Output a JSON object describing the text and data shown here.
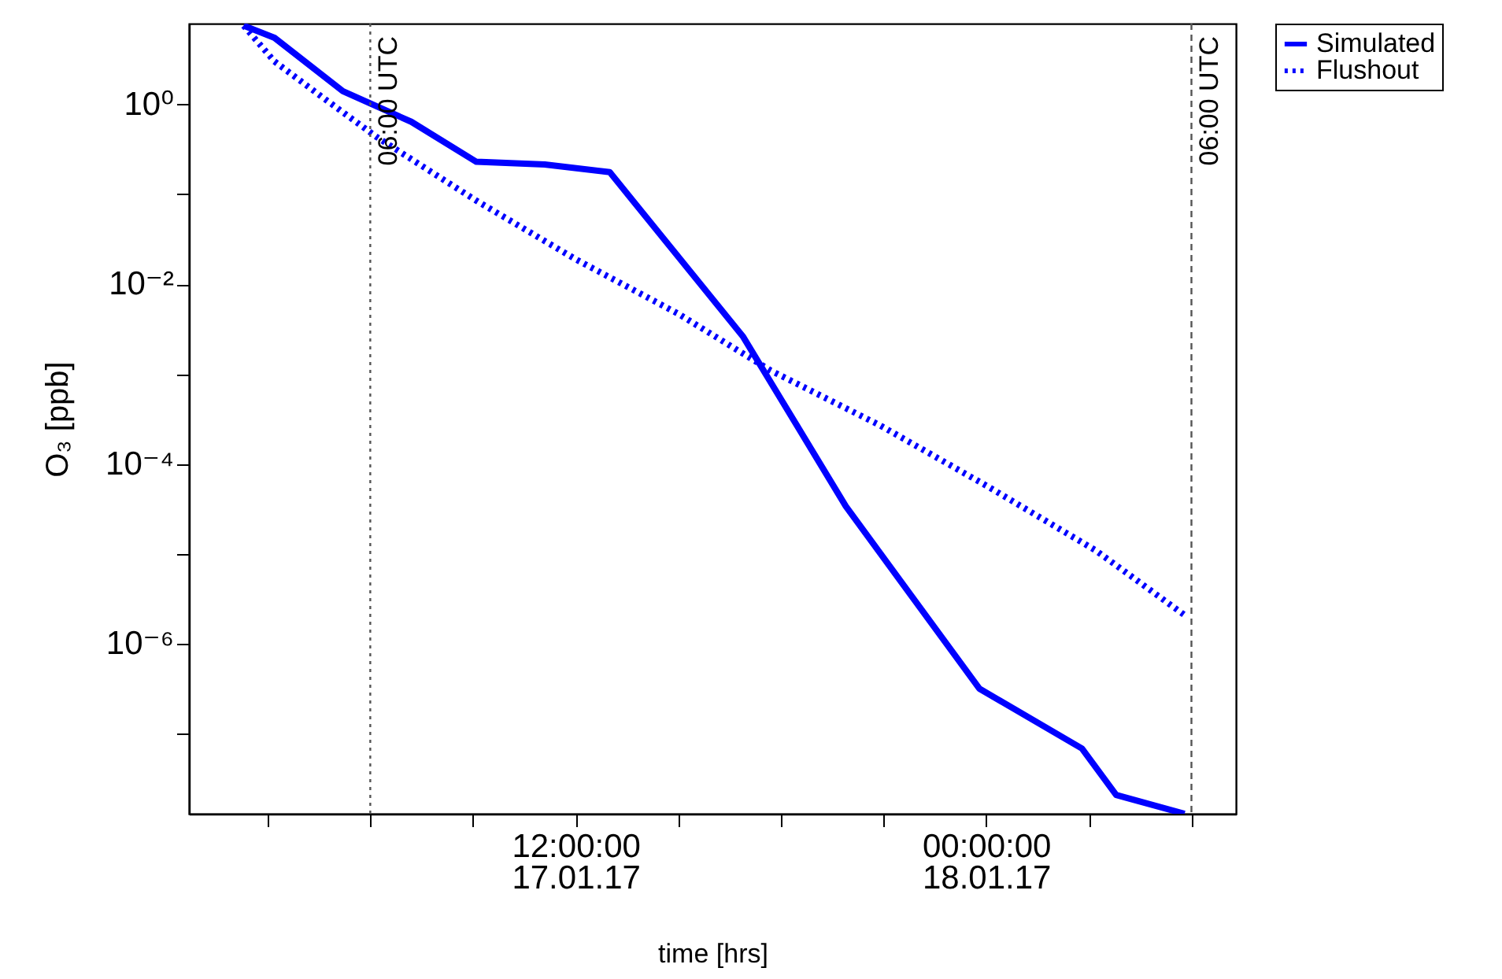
{
  "chart_data": {
    "type": "line",
    "xlabel": "time [hrs]",
    "ylabel": "O₃ [ppb]",
    "xlim": [
      "--01-17T00:42",
      "--01-18T07:18"
    ],
    "xticks": [
      {
        "value": "--01-17T03:00",
        "label": null
      },
      {
        "value": "--01-17T06:00",
        "label": null
      },
      {
        "value": "--01-17T09:00",
        "label": null
      },
      {
        "value": "--01-17T12:00",
        "label": "12:00:00\n17.01.17"
      },
      {
        "value": "--01-17T15:00",
        "label": null
      },
      {
        "value": "--01-17T18:00",
        "label": null
      },
      {
        "value": "--01-17T21:00",
        "label": null
      },
      {
        "value": "--01-18T00:00",
        "label": "00:00:00\n18.01.17"
      },
      {
        "value": "--01-18T03:00",
        "label": null
      },
      {
        "value": "--01-18T06:00",
        "label": null
      }
    ],
    "ylim": [
      1.3e-08,
      7.9
    ],
    "log": "y",
    "yticks": [
      {
        "value": 1,
        "label": "10⁰"
      },
      {
        "value": 0.1,
        "label": null
      },
      {
        "value": 0.01,
        "label": "10⁻²"
      },
      {
        "value": 0.001,
        "label": null
      },
      {
        "value": 0.0001,
        "label": "10⁻⁴"
      },
      {
        "value": 1e-05,
        "label": null
      },
      {
        "value": 1e-06,
        "label": "10⁻⁶"
      },
      {
        "value": 1e-07,
        "label": null
      }
    ],
    "grid": false,
    "legend": "top right",
    "series": [
      {
        "name": "Simulated",
        "color": "#0000ff",
        "line_style": "solid",
        "x": [
          "--01-17T02:18",
          "--01-17T03:12",
          "--01-17T05:12",
          "--01-17T07:12",
          "--01-17T09:06",
          "--01-17T11:06",
          "--01-17T13:00",
          "--01-17T16:54",
          "--01-17T19:54",
          "--01-17T23:48",
          "--01-18T02:48",
          "--01-18T03:48",
          "--01-18T05:48"
        ],
        "values": [
          7.5,
          5.5,
          1.4,
          0.64,
          0.23,
          0.215,
          0.176,
          0.0026,
          3.4e-05,
          3.2e-07,
          6.9e-08,
          2.1e-08,
          1.3e-08
        ]
      },
      {
        "name": "Flushout",
        "color": "#0000ff",
        "line_style": "dotted",
        "x": [
          "--01-17T02:18",
          "--01-17T03:12",
          "--01-17T04:36",
          "--01-17T06:12",
          "--01-17T09:06",
          "--01-17T12:00",
          "--01-17T15:00",
          "--01-17T17:42",
          "--01-17T20:54",
          "--01-18T00:06",
          "--01-18T03:12",
          "--01-18T05:48"
        ],
        "values": [
          7.5,
          3.0,
          1.2,
          0.43,
          0.085,
          0.019,
          0.0047,
          0.0011,
          0.00027,
          5.5e-05,
          1.1e-05,
          2.1e-06
        ]
      }
    ],
    "ref_lines": [
      {
        "axis": "x",
        "value": "--01-17T06:00",
        "label": "06:00 UTC",
        "color": "#555555",
        "line_style": "dotted"
      },
      {
        "axis": "x",
        "value": "--01-18T06:00",
        "label": "06:00 UTC",
        "color": "#555555",
        "line_style": "dashed"
      }
    ]
  }
}
